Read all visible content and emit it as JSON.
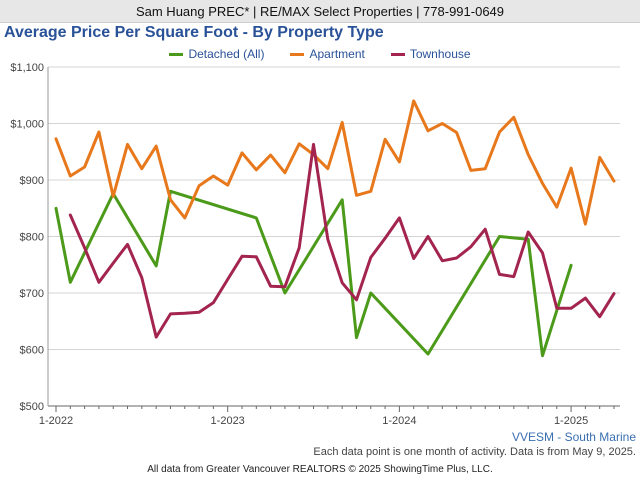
{
  "header": {
    "agent_line": "Sam Huang PREC* | RE/MAX Select Properties | 778-991-0649"
  },
  "chart_data": {
    "type": "line",
    "title": "Average Price Per Square Foot - By Property Type",
    "xlabel": "",
    "ylabel": "",
    "x": [
      "2022-01",
      "2022-02",
      "2022-03",
      "2022-04",
      "2022-05",
      "2022-06",
      "2022-07",
      "2022-08",
      "2022-09",
      "2022-10",
      "2022-11",
      "2022-12",
      "2023-01",
      "2023-02",
      "2023-03",
      "2023-04",
      "2023-05",
      "2023-06",
      "2023-07",
      "2023-08",
      "2023-09",
      "2023-10",
      "2023-11",
      "2023-12",
      "2024-01",
      "2024-02",
      "2024-03",
      "2024-04",
      "2024-05",
      "2024-06",
      "2024-07",
      "2024-08",
      "2024-09",
      "2024-10",
      "2024-11",
      "2024-12",
      "2025-01",
      "2025-02",
      "2025-03",
      "2025-04"
    ],
    "x_ticks": [
      "1-2022",
      "1-2023",
      "1-2024",
      "1-2025"
    ],
    "y_ticks": [
      "$500",
      "$600",
      "$700",
      "$800",
      "$900",
      "$1,000",
      "$1,100"
    ],
    "ylim": [
      500,
      1100
    ],
    "grid": true,
    "legend_position": "top-center",
    "series": [
      {
        "name": "Detached (All)",
        "color": "#4c9a1a",
        "values": [
          850,
          719,
          null,
          null,
          876,
          null,
          null,
          748,
          880,
          null,
          null,
          null,
          null,
          null,
          833,
          null,
          700,
          null,
          null,
          null,
          865,
          621,
          700,
          null,
          null,
          null,
          592,
          null,
          null,
          null,
          null,
          800,
          null,
          795,
          589,
          null,
          749,
          null,
          null,
          null
        ]
      },
      {
        "name": "Apartment",
        "color": "#e8781c",
        "values": [
          973,
          907,
          923,
          985,
          871,
          963,
          920,
          960,
          865,
          833,
          890,
          907,
          891,
          948,
          918,
          944,
          913,
          964,
          945,
          920,
          1002,
          873,
          880,
          972,
          932,
          1040,
          987,
          1000,
          984,
          917,
          920,
          985,
          1011,
          945,
          894,
          852,
          921,
          822,
          940,
          898
        ]
      },
      {
        "name": "Townhouse",
        "color": "#a3254f",
        "values": [
          null,
          838,
          780,
          719,
          753,
          786,
          727,
          622,
          663,
          664,
          666,
          683,
          724,
          765,
          764,
          712,
          711,
          780,
          963,
          795,
          718,
          688,
          763,
          797,
          833,
          761,
          800,
          757,
          762,
          782,
          813,
          733,
          729,
          808,
          771,
          673,
          673,
          691,
          658,
          699
        ]
      }
    ]
  },
  "footer": {
    "source_label": "VVESM - South Marine",
    "note": "Each data point is one month of activity. Data is from May 9, 2025.",
    "copyright": "All data from Greater Vancouver REALTORS © 2025 ShowingTime Plus, LLC."
  }
}
